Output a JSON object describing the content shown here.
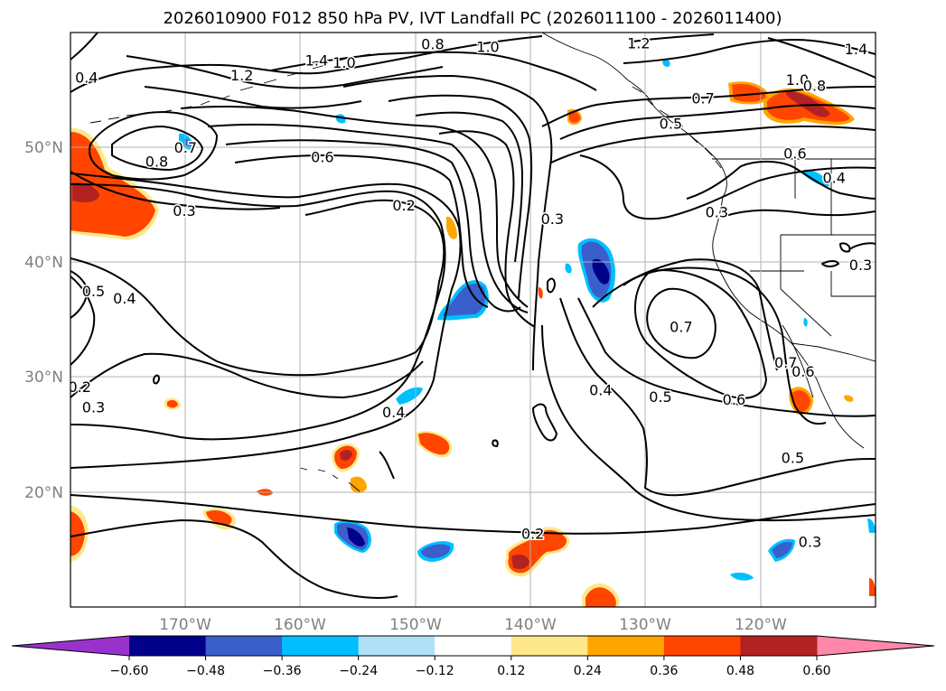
{
  "chart_data": {
    "type": "heatmap",
    "title": "2026010900 F012 850 hPa PV, IVT Landfall PC (2026011100 - 2026011400)",
    "map": {
      "lon_range": [
        -180,
        -110
      ],
      "lat_range": [
        10,
        60
      ],
      "lat_ticks": [
        20,
        30,
        40,
        50
      ],
      "lat_tick_labels": [
        "20°N",
        "30°N",
        "40°N",
        "50°N"
      ],
      "lon_ticks": [
        -170,
        -160,
        -150,
        -140,
        -130,
        -120
      ],
      "lon_tick_labels": [
        "170°W",
        "160°W",
        "150°W",
        "140°W",
        "130°W",
        "120°W"
      ],
      "grid": true
    },
    "colorbar": {
      "orientation": "horizontal",
      "extend": "both",
      "levels": [
        -0.6,
        -0.48,
        -0.36,
        -0.24,
        -0.12,
        0.12,
        0.24,
        0.36,
        0.48,
        0.6
      ],
      "tick_labels": [
        "−0.60",
        "−0.48",
        "−0.36",
        "−0.24",
        "−0.12",
        "0.12",
        "0.24",
        "0.36",
        "0.48",
        "0.60"
      ],
      "colors": [
        "#9932cc",
        "#00008b",
        "#3a5fcd",
        "#00bfff",
        "#b0e0f8",
        "#ffffff",
        "#ffe88a",
        "#ffa500",
        "#ff4500",
        "#b22222",
        "#ff88aa"
      ]
    },
    "contour_labels": [
      {
        "text": "0.8",
        "lon": -148.5,
        "lat": 59.0
      },
      {
        "text": "1.0",
        "lon": -143.7,
        "lat": 58.8
      },
      {
        "text": "1.2",
        "lon": -130.6,
        "lat": 59.1
      },
      {
        "text": "1.4",
        "lon": -111.7,
        "lat": 58.6
      },
      {
        "text": "0.4",
        "lon": -178.6,
        "lat": 56.1
      },
      {
        "text": "1.2",
        "lon": -165.1,
        "lat": 56.3
      },
      {
        "text": "1.4",
        "lon": -158.6,
        "lat": 57.6
      },
      {
        "text": "1.0",
        "lon": -156.2,
        "lat": 57.4
      },
      {
        "text": "0.7",
        "lon": -170.0,
        "lat": 50.0
      },
      {
        "text": "0.8",
        "lon": -172.5,
        "lat": 48.8
      },
      {
        "text": "0.6",
        "lon": -158.1,
        "lat": 49.2
      },
      {
        "text": "0.3",
        "lon": -170.1,
        "lat": 44.5
      },
      {
        "text": "0.2",
        "lon": -151.0,
        "lat": 45.0
      },
      {
        "text": "1.0",
        "lon": -116.8,
        "lat": 55.9
      },
      {
        "text": "0.8",
        "lon": -115.3,
        "lat": 55.4
      },
      {
        "text": "0.7",
        "lon": -125.0,
        "lat": 54.3
      },
      {
        "text": "0.5",
        "lon": -127.8,
        "lat": 52.1
      },
      {
        "text": "0.6",
        "lon": -117.0,
        "lat": 49.5
      },
      {
        "text": "0.4",
        "lon": -113.6,
        "lat": 47.4
      },
      {
        "text": "0.3",
        "lon": -123.8,
        "lat": 44.4
      },
      {
        "text": "0.3",
        "lon": -138.1,
        "lat": 43.8
      },
      {
        "text": "0.3",
        "lon": -111.3,
        "lat": 39.8
      },
      {
        "text": "0.5",
        "lon": -178.0,
        "lat": 37.5
      },
      {
        "text": "0.4",
        "lon": -175.3,
        "lat": 36.9
      },
      {
        "text": "0.7",
        "lon": -126.9,
        "lat": 34.4
      },
      {
        "text": "0.7",
        "lon": -117.8,
        "lat": 31.3
      },
      {
        "text": "0.6",
        "lon": -116.3,
        "lat": 30.5
      },
      {
        "text": "0.2",
        "lon": -179.2,
        "lat": 29.2
      },
      {
        "text": "0.3",
        "lon": -178.0,
        "lat": 27.4
      },
      {
        "text": "0.4",
        "lon": -133.9,
        "lat": 28.9
      },
      {
        "text": "0.5",
        "lon": -128.7,
        "lat": 28.3
      },
      {
        "text": "0.6",
        "lon": -122.3,
        "lat": 28.1
      },
      {
        "text": "0.4",
        "lon": -151.9,
        "lat": 27.0
      },
      {
        "text": "0.5",
        "lon": -117.2,
        "lat": 23.0
      },
      {
        "text": "0.3",
        "lon": -115.7,
        "lat": 15.7
      },
      {
        "text": "0.2",
        "lon": -139.8,
        "lat": 16.4
      }
    ]
  }
}
